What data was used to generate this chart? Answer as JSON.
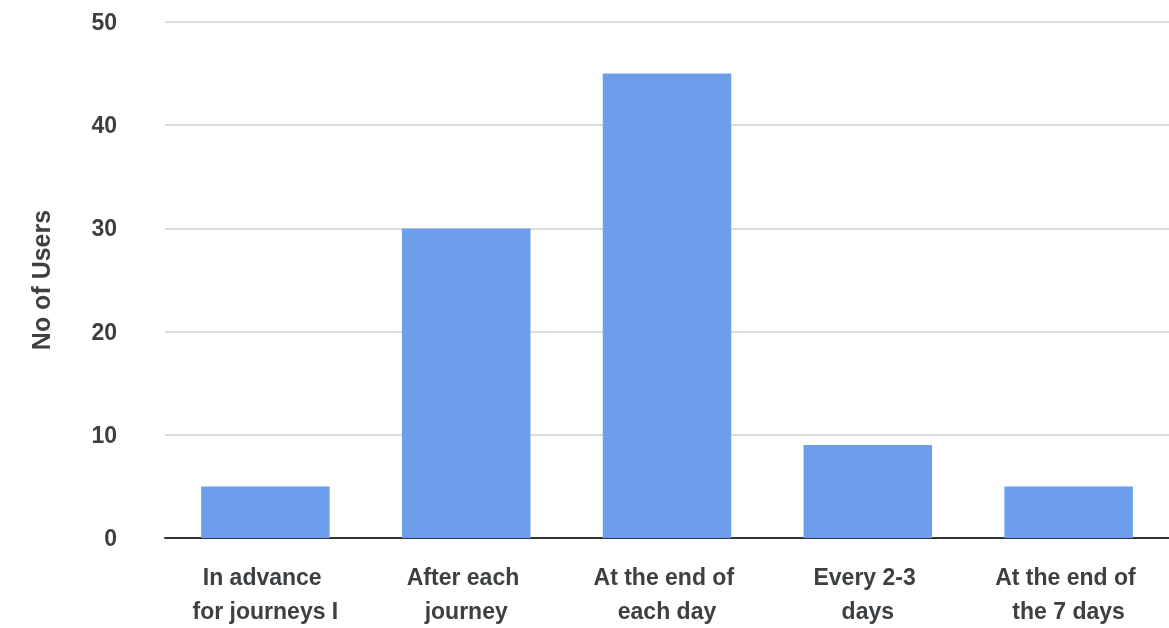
{
  "chart_data": {
    "type": "bar",
    "ylabel": "No of Users",
    "categories": [
      "In advance for journeys I",
      "After each journey",
      "At the end of each day",
      "Every 2-3 days",
      "At the end of the 7 days"
    ],
    "values": [
      5,
      30,
      45,
      9,
      5
    ],
    "color": "#6d9eeb",
    "ylim": [
      0,
      50
    ],
    "yticks": [
      0,
      10,
      20,
      30,
      40,
      50
    ],
    "grid": "y"
  }
}
